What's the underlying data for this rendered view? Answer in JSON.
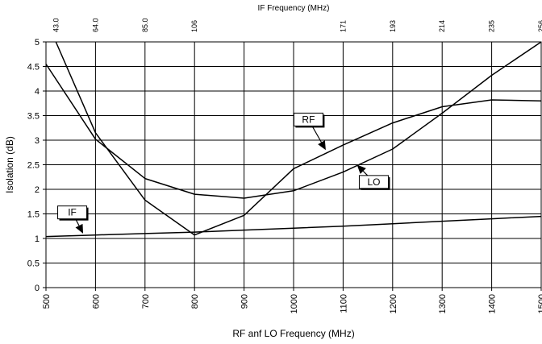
{
  "chart_data": {
    "type": "line",
    "title": "",
    "xlabel": "RF anf LO Frequency (MHz)",
    "ylabel": "Isolation (dB)",
    "top_xlabel": "IF Frequency (MHz)",
    "xlim": [
      500,
      1500
    ],
    "ylim": [
      0,
      5
    ],
    "grid": true,
    "x_ticks": [
      500,
      600,
      700,
      800,
      900,
      1000,
      1100,
      1200,
      1300,
      1400,
      1500
    ],
    "y_ticks": [
      0,
      0.5,
      1,
      1.5,
      2,
      2.5,
      3,
      3.5,
      4,
      4.5,
      5
    ],
    "y_tick_labels": [
      "0",
      "0.5",
      "1",
      "1.5",
      "2",
      "2.5",
      "3",
      "3.5",
      "4",
      "4.5",
      "5"
    ],
    "top_ticks": [
      {
        "x": 520,
        "label": "43.0"
      },
      {
        "x": 600,
        "label": "64.0"
      },
      {
        "x": 700,
        "label": "85.0"
      },
      {
        "x": 800,
        "label": "106"
      },
      {
        "x": 1100,
        "label": "171"
      },
      {
        "x": 1200,
        "label": "193"
      },
      {
        "x": 1300,
        "label": "214"
      },
      {
        "x": 1400,
        "label": "235"
      },
      {
        "x": 1500,
        "label": "256"
      }
    ],
    "series": [
      {
        "name": "RF",
        "x": [
          500,
          600,
          700,
          800,
          900,
          1000,
          1100,
          1200,
          1300,
          1400,
          1500
        ],
        "y": [
          4.55,
          3.02,
          2.22,
          1.9,
          1.82,
          1.97,
          2.35,
          2.82,
          3.55,
          4.32,
          5.0
        ]
      },
      {
        "name": "LO",
        "x": [
          520,
          600,
          700,
          800,
          900,
          1000,
          1100,
          1200,
          1300,
          1400,
          1500
        ],
        "y": [
          5.0,
          3.15,
          1.78,
          1.07,
          1.47,
          2.42,
          2.9,
          3.35,
          3.68,
          3.82,
          3.8
        ]
      },
      {
        "name": "IF",
        "x": [
          500,
          600,
          700,
          800,
          900,
          1000,
          1100,
          1200,
          1300,
          1400,
          1500
        ],
        "y": [
          1.04,
          1.07,
          1.1,
          1.13,
          1.17,
          1.21,
          1.25,
          1.3,
          1.35,
          1.4,
          1.45
        ]
      }
    ],
    "annotations": [
      {
        "label": "RF",
        "box_x": 1030,
        "box_y": 3.42,
        "arrow_to_x": 1065,
        "arrow_to_y": 2.8
      },
      {
        "label": "LO",
        "box_x": 1162,
        "box_y": 2.15,
        "arrow_to_x": 1128,
        "arrow_to_y": 2.5
      },
      {
        "label": "IF",
        "box_x": 553,
        "box_y": 1.53,
        "arrow_to_x": 575,
        "arrow_to_y": 1.1
      }
    ]
  }
}
